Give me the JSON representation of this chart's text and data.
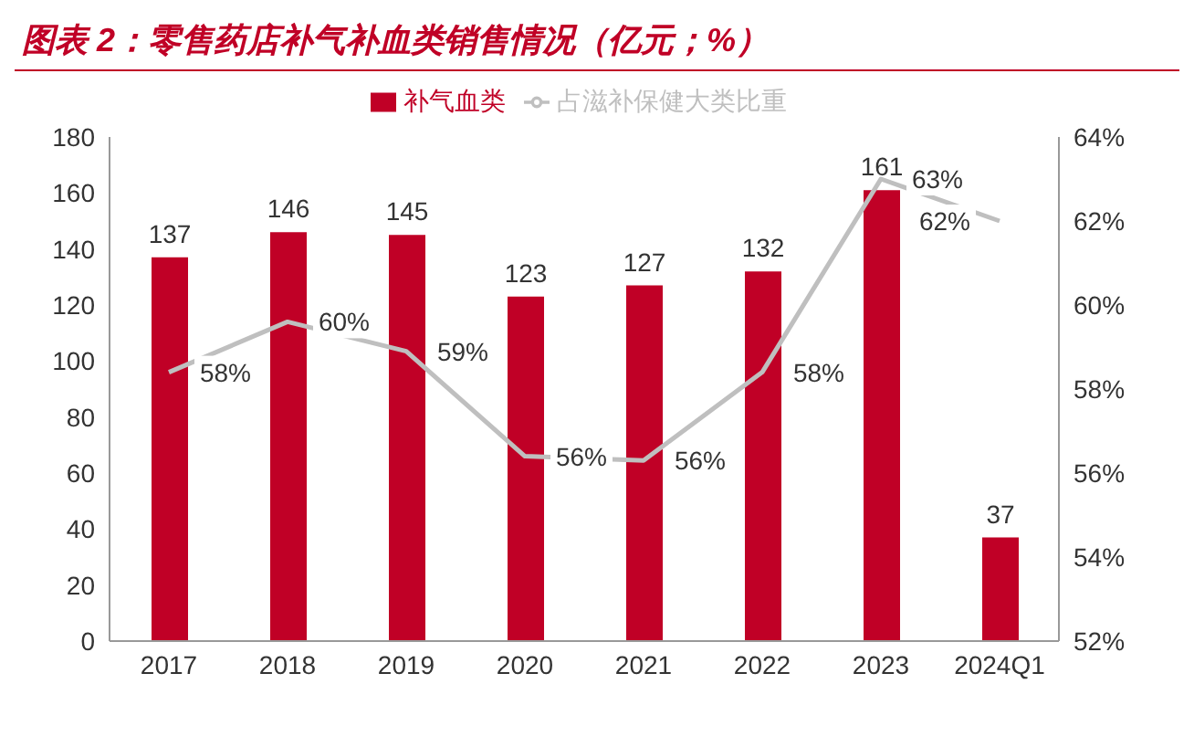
{
  "chart_data": {
    "type": "bar",
    "title": "图表 2：零售药店补气补血类销售情况（亿元；%）",
    "categories": [
      "2017",
      "2018",
      "2019",
      "2020",
      "2021",
      "2022",
      "2023",
      "2024Q1"
    ],
    "series": [
      {
        "name": "补气血类",
        "color": "#c00026",
        "values": [
          137,
          146,
          145,
          123,
          127,
          132,
          161,
          37
        ],
        "data_labels": true
      },
      {
        "name": "占滋补保健大类比重",
        "type": "line",
        "axis": "y2",
        "color": "#bfbfbf",
        "values": [
          58.4,
          59.6,
          58.9,
          56.4,
          56.3,
          58.4,
          63.0,
          62.0
        ],
        "value_labels": [
          "58%",
          "60%",
          "59%",
          "56%",
          "56%",
          "58%",
          "63%",
          "62%"
        ],
        "marker": "none"
      }
    ],
    "ylim": [
      0,
      180
    ],
    "yticks": [
      0,
      20,
      40,
      60,
      80,
      100,
      120,
      140,
      160,
      180
    ],
    "y2lim": [
      52,
      64
    ],
    "y2ticks": [
      {
        "value": 52,
        "label": "52%"
      },
      {
        "value": 54,
        "label": "54%"
      },
      {
        "value": 56,
        "label": "56%"
      },
      {
        "value": 58,
        "label": "58%"
      },
      {
        "value": 60,
        "label": "60%"
      },
      {
        "value": 62,
        "label": "62%"
      },
      {
        "value": 64,
        "label": "64%"
      }
    ],
    "grid": false,
    "legend": "top"
  }
}
